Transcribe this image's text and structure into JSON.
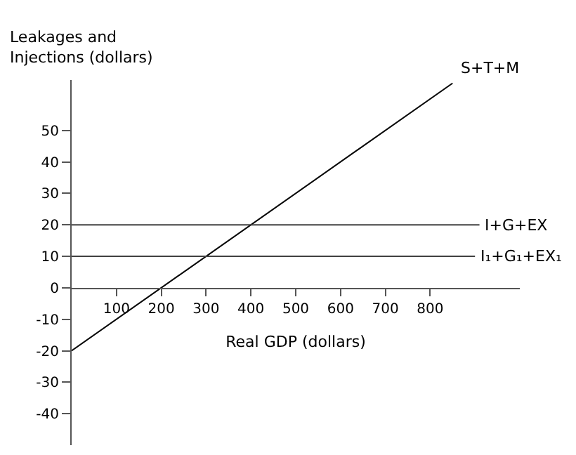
{
  "chart_data": {
    "type": "line",
    "xlabel": "Real GDP (dollars)",
    "ylabel": "Leakages and\nInjections (dollars)",
    "xlim": [
      0,
      1000
    ],
    "ylim": [
      -50,
      66
    ],
    "xticks": [
      100,
      200,
      300,
      400,
      500,
      600,
      700,
      800
    ],
    "yticks": [
      -40,
      -30,
      -20,
      -10,
      0,
      10,
      20,
      30,
      40,
      50
    ],
    "legend": false,
    "marker": "none",
    "line_style": "solid",
    "series": [
      {
        "name": "S+T+M",
        "color": "#000000",
        "x": [
          0,
          850
        ],
        "values": [
          -20,
          65
        ]
      },
      {
        "name": "I+G+EX",
        "color": "#404040",
        "x": [
          0,
          910
        ],
        "values": [
          20,
          20
        ]
      },
      {
        "name": "I₁+G₁+EX₁",
        "color": "#404040",
        "x": [
          0,
          900
        ],
        "values": [
          10,
          10
        ]
      }
    ]
  }
}
